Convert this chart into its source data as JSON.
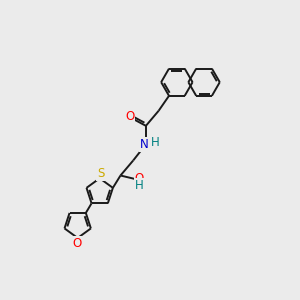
{
  "background_color": "#ebebeb",
  "bond_color": "#1a1a1a",
  "bond_lw": 1.4,
  "atom_colors": {
    "O": "#ff0000",
    "N": "#0000cc",
    "S": "#ccaa00",
    "H_N": "#008080",
    "H_O": "#008080"
  },
  "fontsize": 8.5
}
